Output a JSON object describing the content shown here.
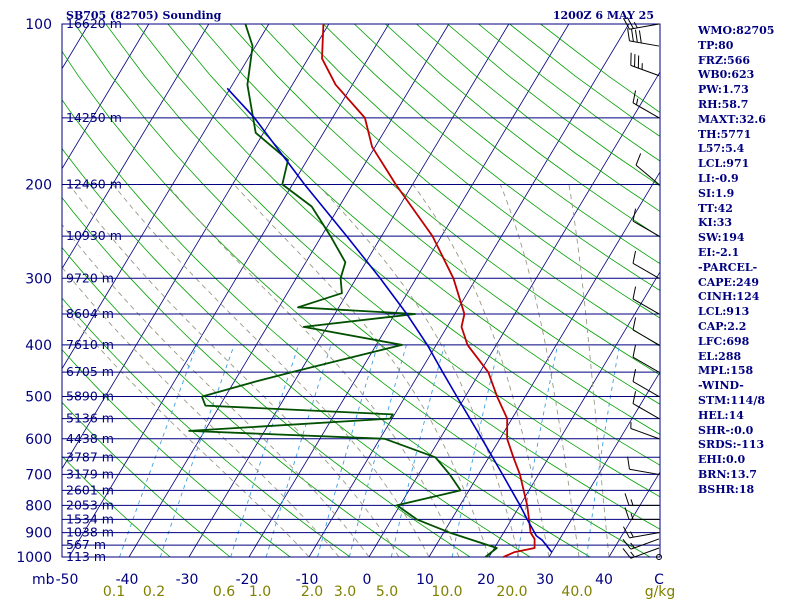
{
  "header": {
    "station": "SB705 (82705) Sounding",
    "time": "1200Z  6 MAY 25"
  },
  "indices": [
    "WMO:82705",
    "TP:80",
    "FRZ:566",
    "WB0:623",
    "PW:1.73",
    "RH:58.7",
    "MAXT:32.6",
    "TH:5771",
    "L57:5.4",
    "LCL:971",
    "LI:-0.9",
    "SI:1.9",
    "TT:42",
    "KI:33",
    "SW:194",
    "EI:-2.1",
    "-PARCEL-",
    "CAPE:249",
    "CINH:124",
    "LCL:913",
    "CAP:2.2",
    "LFC:698",
    "EL:288",
    "MPL:158",
    "-WIND-",
    "STM:114/8",
    "HEL:14",
    "SHR-:0.0",
    "SRDS:-113",
    "EHI:0.0",
    "BRN:13.7",
    "BSHR:18"
  ],
  "colors": {
    "isobar": "#000080",
    "isotherm": "#000080",
    "dry_adiabat": "#00a000",
    "moist_adiabat": "#9a9a88",
    "mixing_ratio": "#40a0e0",
    "temperature": "#c00000",
    "dewpoint": "#005000",
    "parcel": "#0000c0",
    "pressure_label": "#000080",
    "temp_label": "#000080",
    "mixing_label": "#808000"
  },
  "chart_data": {
    "type": "line",
    "diagram": "skew-T log-p",
    "axes": {
      "pressure_ticks": [
        100,
        200,
        300,
        400,
        500,
        600,
        700,
        800,
        900,
        1000
      ],
      "pressure_unit": "mb",
      "temperature_ticks": [
        "-50",
        "-40",
        "-30",
        "-20",
        "-10",
        "0",
        "10",
        "20",
        "30",
        "40",
        "C"
      ],
      "mixing_ratio_ticks": [
        "0.1",
        "0.2",
        "0.6",
        "1.0",
        "2.0",
        "3.0",
        "5.0",
        "10.0",
        "20.0",
        "40.0"
      ],
      "mixing_ratio_unit": "g/kg",
      "pressure_range_mb": [
        100,
        1000
      ],
      "temperature_range_c_at_surface": [
        -50,
        50
      ],
      "yscale": "log"
    },
    "heights": [
      {
        "p": 100,
        "label": "16620 m"
      },
      {
        "p": 150,
        "label": "14250 m"
      },
      {
        "p": 200,
        "label": "12460 m"
      },
      {
        "p": 250,
        "label": "10930 m"
      },
      {
        "p": 300,
        "label": "9720 m"
      },
      {
        "p": 350,
        "label": "8604 m"
      },
      {
        "p": 400,
        "label": "7610 m"
      },
      {
        "p": 450,
        "label": "6705 m"
      },
      {
        "p": 500,
        "label": "5890 m"
      },
      {
        "p": 550,
        "label": "5136 m"
      },
      {
        "p": 600,
        "label": "4438 m"
      },
      {
        "p": 650,
        "label": "3787 m"
      },
      {
        "p": 700,
        "label": "3179 m"
      },
      {
        "p": 750,
        "label": "2601 m"
      },
      {
        "p": 800,
        "label": "2053 m"
      },
      {
        "p": 850,
        "label": "1534 m"
      },
      {
        "p": 900,
        "label": "1038 m"
      },
      {
        "p": 950,
        "label": "567 m"
      },
      {
        "p": 1000,
        "label": "113 m"
      }
    ],
    "series": [
      {
        "key": "temperature",
        "points": [
          [
            1000,
            22.4
          ],
          [
            980,
            23.7
          ],
          [
            962,
            26.7
          ],
          [
            925,
            25.8
          ],
          [
            900,
            24.5
          ],
          [
            850,
            22.9
          ],
          [
            800,
            21.2
          ],
          [
            700,
            16.9
          ],
          [
            650,
            14.1
          ],
          [
            600,
            11.2
          ],
          [
            550,
            9.2
          ],
          [
            500,
            5.3
          ],
          [
            450,
            1.4
          ],
          [
            400,
            -4.8
          ],
          [
            370,
            -7.6
          ],
          [
            350,
            -8.4
          ],
          [
            300,
            -13.8
          ],
          [
            250,
            -21.5
          ],
          [
            200,
            -32.8
          ],
          [
            170,
            -40.5
          ],
          [
            150,
            -44.6
          ],
          [
            130,
            -52.8
          ],
          [
            116,
            -57.7
          ],
          [
            100,
            -60.9
          ]
        ]
      },
      {
        "key": "dewpoint",
        "points": [
          [
            1000,
            19.4
          ],
          [
            962,
            20.4
          ],
          [
            925,
            14.9
          ],
          [
            900,
            11.0
          ],
          [
            850,
            4.2
          ],
          [
            800,
            -0.5
          ],
          [
            750,
            8.6
          ],
          [
            700,
            5.2
          ],
          [
            650,
            1.1
          ],
          [
            600,
            -9.2
          ],
          [
            580,
            -42.6
          ],
          [
            550,
            -10.3
          ],
          [
            540,
            -10.3
          ],
          [
            520,
            -42.4
          ],
          [
            500,
            -43.9
          ],
          [
            470,
            -36.8
          ],
          [
            450,
            -31.4
          ],
          [
            400,
            -15.7
          ],
          [
            370,
            -33.9
          ],
          [
            350,
            -16.6
          ],
          [
            340,
            -36.8
          ],
          [
            320,
            -30.9
          ],
          [
            300,
            -32.6
          ],
          [
            280,
            -33.4
          ],
          [
            250,
            -38.5
          ],
          [
            220,
            -44.6
          ],
          [
            200,
            -51.7
          ],
          [
            180,
            -53.2
          ],
          [
            160,
            -61.3
          ],
          [
            130,
            -67.5
          ],
          [
            110,
            -70.5
          ],
          [
            100,
            -73.9
          ]
        ]
      },
      {
        "key": "parcel",
        "points": [
          [
            980,
            30.0
          ],
          [
            930,
            27.2
          ],
          [
            913,
            25.8
          ],
          [
            850,
            22.6
          ],
          [
            800,
            20.0
          ],
          [
            700,
            14.0
          ],
          [
            600,
            7.0
          ],
          [
            500,
            -1.4
          ],
          [
            450,
            -6.2
          ],
          [
            400,
            -11.5
          ],
          [
            350,
            -18.0
          ],
          [
            300,
            -26.0
          ],
          [
            250,
            -35.8
          ],
          [
            200,
            -48.0
          ],
          [
            150,
            -63.0
          ],
          [
            132,
            -70.5
          ]
        ]
      }
    ],
    "wind_barbs": [
      {
        "p": 1000,
        "dir": 360,
        "spd": 0
      },
      {
        "p": 962,
        "dir": 250,
        "spd": 15
      },
      {
        "p": 925,
        "dir": 250,
        "spd": 15
      },
      {
        "p": 900,
        "dir": 260,
        "spd": 15
      },
      {
        "p": 850,
        "dir": 270,
        "spd": 15
      },
      {
        "p": 800,
        "dir": 270,
        "spd": 15
      },
      {
        "p": 700,
        "dir": 280,
        "spd": 10
      },
      {
        "p": 600,
        "dir": 290,
        "spd": 5
      },
      {
        "p": 550,
        "dir": 300,
        "spd": 10
      },
      {
        "p": 500,
        "dir": 300,
        "spd": 10
      },
      {
        "p": 450,
        "dir": 300,
        "spd": 10
      },
      {
        "p": 400,
        "dir": 300,
        "spd": 10
      },
      {
        "p": 350,
        "dir": 300,
        "spd": 10
      },
      {
        "p": 300,
        "dir": 300,
        "spd": 10
      },
      {
        "p": 250,
        "dir": 300,
        "spd": 10
      },
      {
        "p": 200,
        "dir": 310,
        "spd": 10
      },
      {
        "p": 150,
        "dir": 300,
        "spd": 15
      },
      {
        "p": 125,
        "dir": 290,
        "spd": 35
      },
      {
        "p": 110,
        "dir": 280,
        "spd": 40
      },
      {
        "p": 100,
        "dir": 260,
        "spd": 25
      }
    ]
  }
}
